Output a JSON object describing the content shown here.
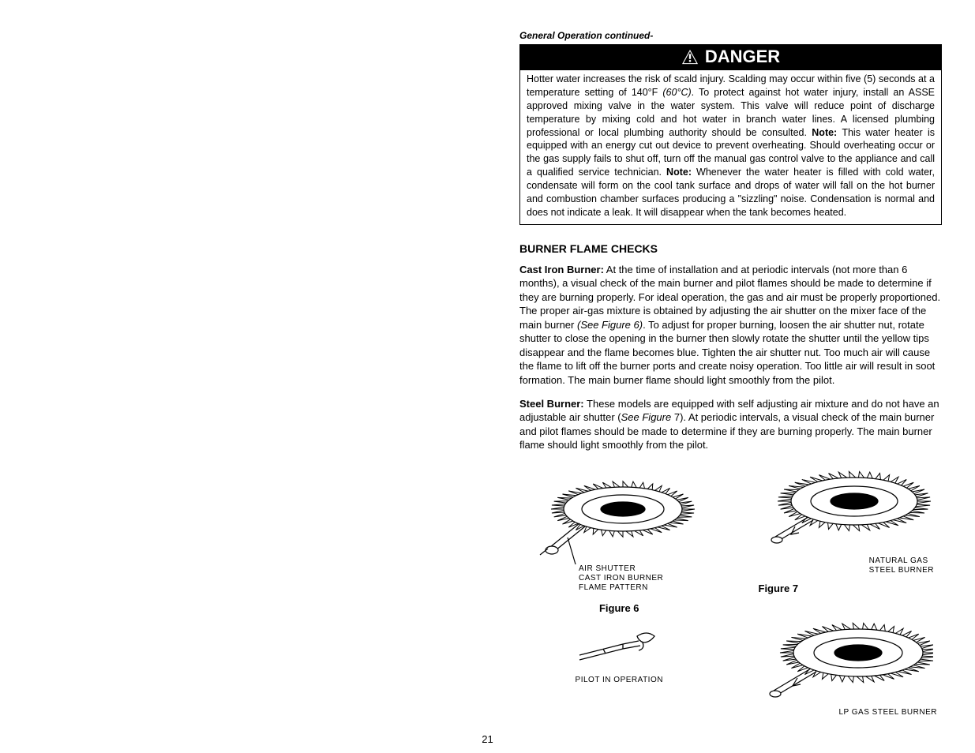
{
  "header": {
    "continued": "General Operation continued-"
  },
  "danger": {
    "banner": "DANGER",
    "body_pre": "Hotter water increases the risk of scald injury.  Scalding may occur within five (5) seconds at a temperature setting of 140°F ",
    "body_italic1": "(60°C)",
    "body_mid1": ".  To protect against hot water injury, install an ASSE approved mixing valve in the water system.  This valve will reduce point of discharge temperature by mixing cold and hot water in branch water lines.  A licensed plumbing professional or local plumbing authority should be consulted. ",
    "note1_label": "Note:",
    "body_mid2": "  This water heater is equipped with an energy cut out device to prevent overheating.  Should overheating occur or the gas supply fails to shut off, turn off the manual gas control valve to the appliance and call a qualified service technician. ",
    "note2_label": "Note:",
    "body_end": "  Whenever the water heater is filled with cold water, condensate will form on the cool tank surface and drops of water will fall on the hot burner and combustion chamber surfaces producing a \"sizzling\" noise.  Condensation is normal and does not indicate a leak.  It will disappear when the tank becomes heated."
  },
  "section": {
    "title": "BURNER FLAME CHECKS"
  },
  "cast": {
    "label": "Cast Iron Burner:",
    "pre": "  At the time of installation and at periodic intervals (not more than 6 months), a visual check of the main burner and pilot flames should be made to determine if they are burning properly.  For ideal operation, the gas and air must be properly proportioned.  The proper air-gas mixture is obtained by adjusting the air shutter on the mixer face of the main burner ",
    "italic": "(See Figure 6)",
    "post": ".  To adjust for proper burning, loosen the air shutter nut, rotate shutter to close the opening in the burner then slowly rotate the shutter until the yellow tips disappear and the flame becomes blue.  Tighten the air shutter nut.  Too much air will cause the flame to lift off the burner ports and create noisy operation.  Too little air will result in soot formation.  The main burner flame should light smoothly from the pilot."
  },
  "steel": {
    "label": "Steel Burner:",
    "pre": "  These models are equipped with self adjusting air mixture and do not have an adjustable air shutter (",
    "italic": "See Figure",
    "seven": " 7",
    "post": ").  At periodic intervals, a visual check of the main burner and pilot flames should be made to determine if they are burning properly.  The main burner flame should light smoothly from the pilot."
  },
  "figs": {
    "f6_label": "Figure 6",
    "f7_label": "Figure 7",
    "cap_castL1": "AIR SHUTTER",
    "cap_castL2": "CAST IRON BURNER",
    "cap_castL3": "FLAME PATTERN",
    "cap_pilot": "PILOT IN OPERATION",
    "cap_natL1": "NATURAL GAS",
    "cap_natL2": "STEEL BURNER",
    "cap_lp": "LP GAS STEEL BURNER"
  },
  "pagenum": "21",
  "style": {
    "banner_bg": "#000000",
    "banner_fg": "#ffffff",
    "stroke": "#000000"
  }
}
